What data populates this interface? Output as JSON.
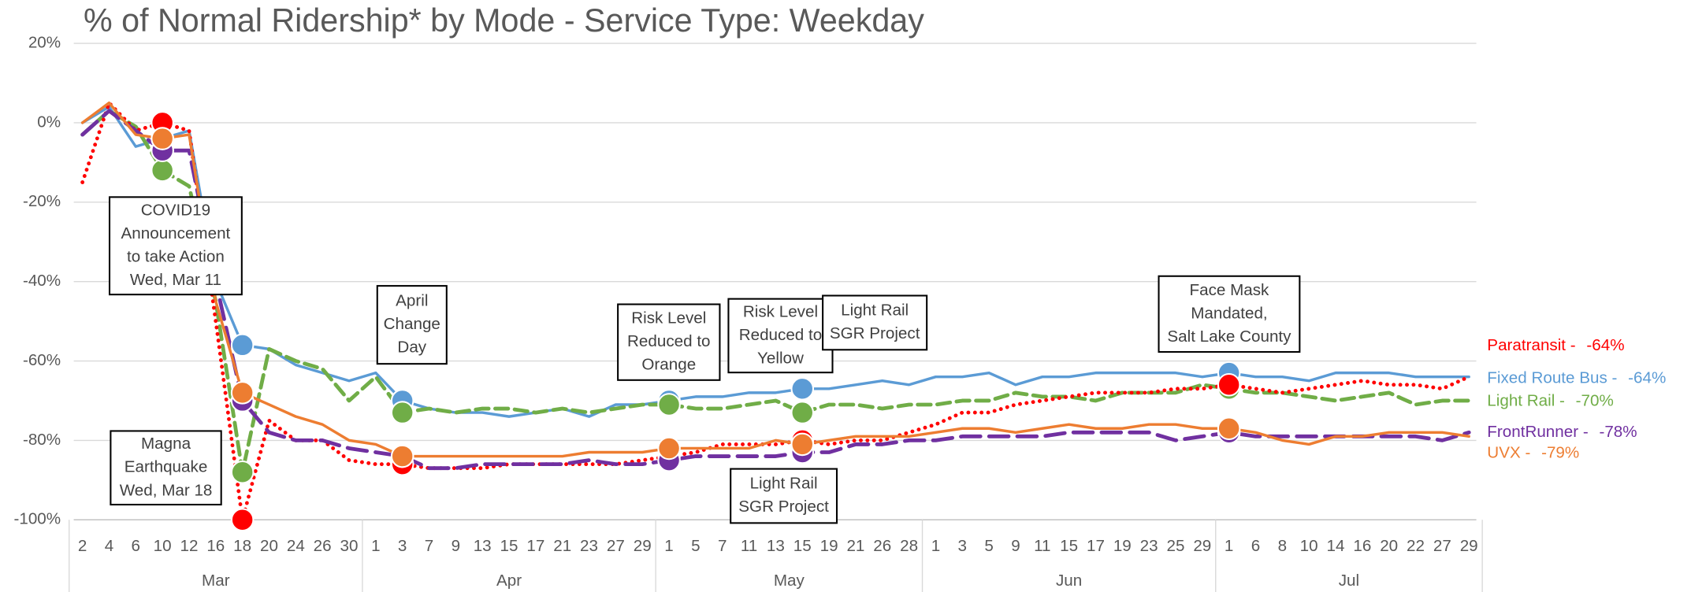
{
  "chart_data": {
    "type": "line",
    "title": "% of Normal Ridership* by Mode - Service Type: Weekday",
    "groups": [
      {
        "name": "Mar",
        "categories": [
          "2",
          "4",
          "6",
          "10",
          "12",
          "16",
          "18",
          "20",
          "24",
          "26",
          "30"
        ]
      },
      {
        "name": "Apr",
        "categories": [
          "1",
          "3",
          "7",
          "9",
          "13",
          "15",
          "17",
          "21",
          "23",
          "27",
          "29"
        ]
      },
      {
        "name": "May",
        "categories": [
          "1",
          "5",
          "7",
          "11",
          "13",
          "15",
          "19",
          "21",
          "26",
          "28"
        ]
      },
      {
        "name": "Jun",
        "categories": [
          "1",
          "3",
          "5",
          "9",
          "11",
          "15",
          "17",
          "19",
          "23",
          "25",
          "29"
        ]
      },
      {
        "name": "Jul",
        "categories": [
          "1",
          "6",
          "8",
          "10",
          "14",
          "16",
          "20",
          "22",
          "27",
          "29"
        ]
      }
    ],
    "ylim": [
      -100,
      20
    ],
    "yticks": [
      {
        "value": -100,
        "label": "-100%"
      },
      {
        "value": -80,
        "label": "-80%"
      },
      {
        "value": -60,
        "label": "-60%"
      },
      {
        "value": -40,
        "label": "-40%"
      },
      {
        "value": -20,
        "label": "-20%"
      },
      {
        "value": 0,
        "label": "0%"
      },
      {
        "value": 20,
        "label": "20%"
      }
    ],
    "grid": true,
    "series": [
      {
        "name": "Fixed Route Bus -",
        "end_label": "-64%",
        "color": "#5b9bd5",
        "dash": "solid",
        "values": [
          0,
          4,
          -6,
          -4,
          -2,
          -40,
          -56,
          -57,
          -61,
          -63,
          -65,
          -63,
          -70,
          -72,
          -73,
          -73,
          -74,
          -73,
          -72,
          -74,
          -71,
          -71,
          -70,
          -69,
          -69,
          -68,
          -68,
          -67,
          -67,
          -66,
          -65,
          -66,
          -64,
          -64,
          -63,
          -66,
          -64,
          -64,
          -63,
          -63,
          -63,
          -63,
          -64,
          -63,
          -64,
          -64,
          -65,
          -63,
          -63,
          -63,
          -64,
          -64,
          -64
        ]
      },
      {
        "name": "Light Rail -",
        "end_label": "-70%",
        "color": "#70ad47",
        "dash": "dashed",
        "values": [
          -3,
          3,
          -1,
          -12,
          -16,
          -45,
          -88,
          -57,
          -60,
          -62,
          -70,
          -64,
          -73,
          -72,
          -73,
          -72,
          -72,
          -73,
          -72,
          -73,
          -72,
          -71,
          -71,
          -72,
          -72,
          -71,
          -70,
          -73,
          -71,
          -71,
          -72,
          -71,
          -71,
          -70,
          -70,
          -68,
          -69,
          -69,
          -70,
          -68,
          -68,
          -68,
          -66,
          -67,
          -68,
          -68,
          -69,
          -70,
          -69,
          -68,
          -71,
          -70,
          -70
        ]
      },
      {
        "name": "Paratransit -",
        "end_label": "-64%",
        "color": "#ff0000",
        "dash": "dotted",
        "values": [
          -15,
          5,
          -2,
          0,
          -2,
          -50,
          -100,
          -75,
          -80,
          -80,
          -85,
          -86,
          -86,
          -87,
          -87,
          -87,
          -86,
          -86,
          -86,
          -86,
          -86,
          -85,
          -84,
          -83,
          -81,
          -81,
          -81,
          -80,
          -81,
          -80,
          -80,
          -78,
          -76,
          -73,
          -73,
          -71,
          -70,
          -69,
          -68,
          -68,
          -68,
          -67,
          -67,
          -66,
          -67,
          -68,
          -67,
          -66,
          -65,
          -66,
          -66,
          -67,
          -64
        ]
      },
      {
        "name": "FrontRunner -",
        "end_label": "-78%",
        "color": "#7030a0",
        "dash": "longdash",
        "values": [
          -3,
          3,
          -2,
          -7,
          -7,
          -40,
          -70,
          -78,
          -80,
          -80,
          -82,
          -83,
          -84,
          -87,
          -87,
          -86,
          -86,
          -86,
          -86,
          -85,
          -86,
          -86,
          -85,
          -84,
          -84,
          -84,
          -84,
          -83,
          -83,
          -81,
          -81,
          -80,
          -80,
          -79,
          -79,
          -79,
          -79,
          -78,
          -78,
          -78,
          -78,
          -80,
          -79,
          -78,
          -79,
          -79,
          -79,
          -79,
          -79,
          -79,
          -79,
          -80,
          -78
        ]
      },
      {
        "name": "UVX -",
        "end_label": "-79%",
        "color": "#ed7d31",
        "dash": "solid",
        "values": [
          0,
          5,
          -3,
          -4,
          -3,
          -45,
          -68,
          -71,
          -74,
          -76,
          -80,
          -81,
          -84,
          -84,
          -84,
          -84,
          -84,
          -84,
          -84,
          -83,
          -83,
          -83,
          -82,
          -82,
          -82,
          -82,
          -80,
          -81,
          -80,
          -79,
          -79,
          -79,
          -78,
          -77,
          -77,
          -78,
          -77,
          -76,
          -77,
          -77,
          -76,
          -76,
          -77,
          -77,
          -78,
          -80,
          -81,
          -79,
          -79,
          -78,
          -78,
          -78,
          -79
        ]
      }
    ],
    "annotations": [
      {
        "lines": [
          "COVID19",
          "Announcement",
          "to take Action",
          "Wed, Mar 11"
        ]
      },
      {
        "lines": [
          "Magna",
          "Earthquake",
          "Wed, Mar 18"
        ]
      },
      {
        "lines": [
          "April",
          "Change",
          "Day"
        ]
      },
      {
        "lines": [
          "Risk Level",
          "Reduced to",
          "Orange"
        ]
      },
      {
        "lines": [
          "Risk Level",
          "Reduced to",
          "Yellow"
        ]
      },
      {
        "lines": [
          "Light Rail",
          "SGR Project"
        ]
      },
      {
        "lines": [
          "Light Rail",
          "SGR Project"
        ]
      },
      {
        "lines": [
          "Face Mask",
          "Mandated,",
          "Salt Lake County"
        ]
      }
    ]
  }
}
